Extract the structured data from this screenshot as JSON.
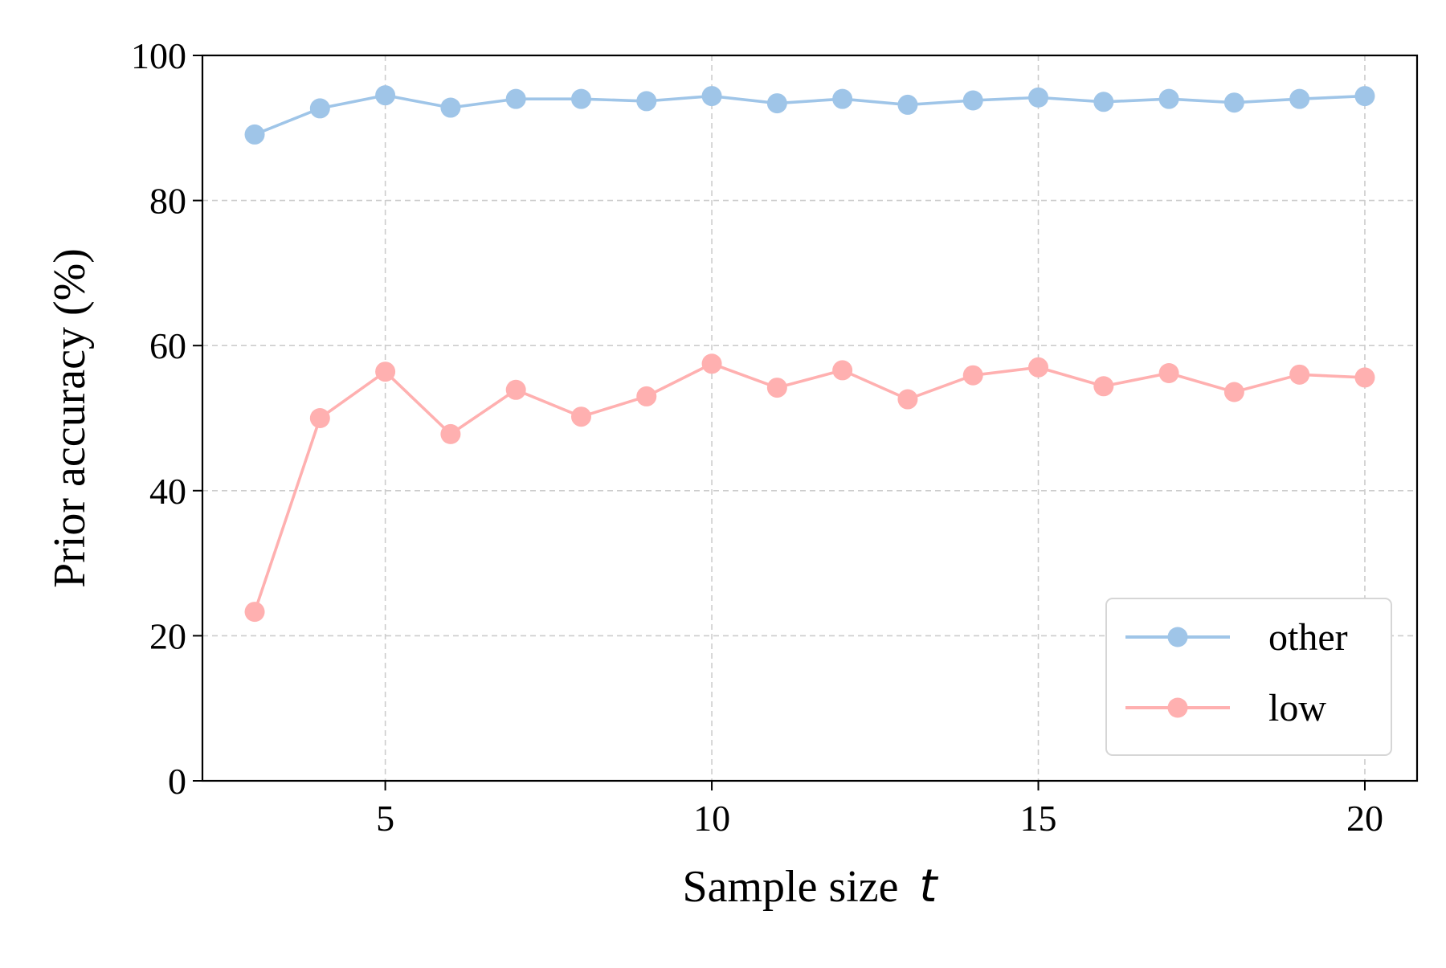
{
  "chart_data": {
    "type": "line",
    "title": "",
    "xlabel": "Sample size",
    "xlabel_var": "t",
    "ylabel": "Prior accuracy (%)",
    "xlim": [
      2.2,
      20.8
    ],
    "ylim": [
      0,
      100
    ],
    "xticks": [
      5,
      10,
      15,
      20
    ],
    "yticks": [
      0,
      20,
      40,
      60,
      80,
      100
    ],
    "grid": true,
    "legend_position": "lower-right",
    "x": [
      3,
      4,
      5,
      6,
      7,
      8,
      9,
      10,
      11,
      12,
      13,
      14,
      15,
      16,
      17,
      18,
      19,
      20
    ],
    "series": [
      {
        "name": "other",
        "color": "#9fc5e8",
        "values": [
          89.1,
          92.7,
          94.5,
          92.8,
          94.0,
          94.0,
          93.7,
          94.4,
          93.4,
          94.0,
          93.2,
          93.8,
          94.2,
          93.6,
          94.0,
          93.5,
          94.0,
          94.4
        ]
      },
      {
        "name": "low",
        "color": "#ffb0b0",
        "values": [
          23.3,
          50.0,
          56.4,
          47.8,
          53.9,
          50.2,
          53.0,
          57.5,
          54.2,
          56.6,
          52.6,
          55.9,
          57.0,
          54.4,
          56.2,
          53.6,
          56.0,
          55.6
        ]
      }
    ]
  }
}
